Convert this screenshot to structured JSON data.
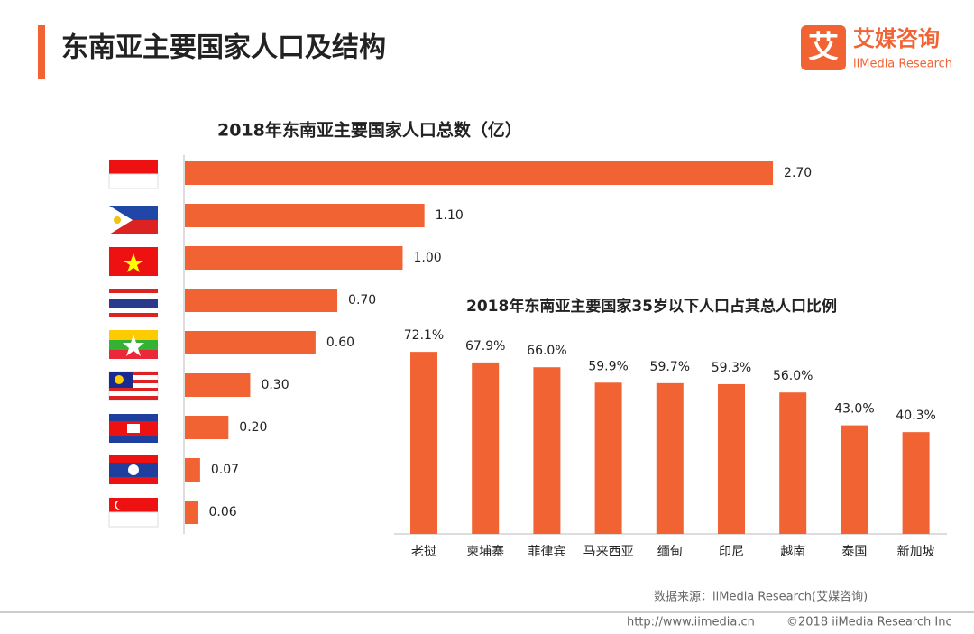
{
  "header": {
    "title": "东南亚主要国家人口及结构",
    "logo_mark": "艾",
    "logo_name": "艾媒咨询",
    "logo_sub": "iiMedia Research"
  },
  "chart_data": [
    {
      "type": "hbar",
      "title": "2018年东南亚主要国家人口总数（亿）",
      "color": "#f26334",
      "categories": [
        null,
        null,
        null,
        null,
        null,
        null,
        null,
        null,
        null
      ],
      "values": [
        2.7,
        1.1,
        1.0,
        0.7,
        0.6,
        0.3,
        0.2,
        0.07,
        0.06
      ],
      "value_labels": [
        "2.70",
        "1.10",
        "1.00",
        "0.70",
        "0.60",
        "0.30",
        "0.20",
        "0.07",
        "0.06"
      ]
    },
    {
      "type": "bar",
      "title": "2018年东南亚主要国家35岁以下人口占其总人口比例",
      "color": "#f26334",
      "categories": [
        "老挝",
        "柬埔寨",
        "菲律宾",
        "马来西亚",
        "缅甸",
        "印尼",
        "越南",
        "泰国",
        "新加坡"
      ],
      "values": [
        72.1,
        67.9,
        66.0,
        59.9,
        59.7,
        59.3,
        56.0,
        43.0,
        40.3
      ],
      "value_labels": [
        "72.1%",
        "67.9%",
        "66.0%",
        "59.9%",
        "59.7%",
        "59.3%",
        "56.0%",
        "43.0%",
        "40.3%"
      ]
    }
  ],
  "footer": {
    "source": "数据来源：iiMedia Research(艾媒咨询)",
    "url": "http://www.iimedia.cn",
    "copyright": "©2018  iiMedia Research  Inc"
  }
}
